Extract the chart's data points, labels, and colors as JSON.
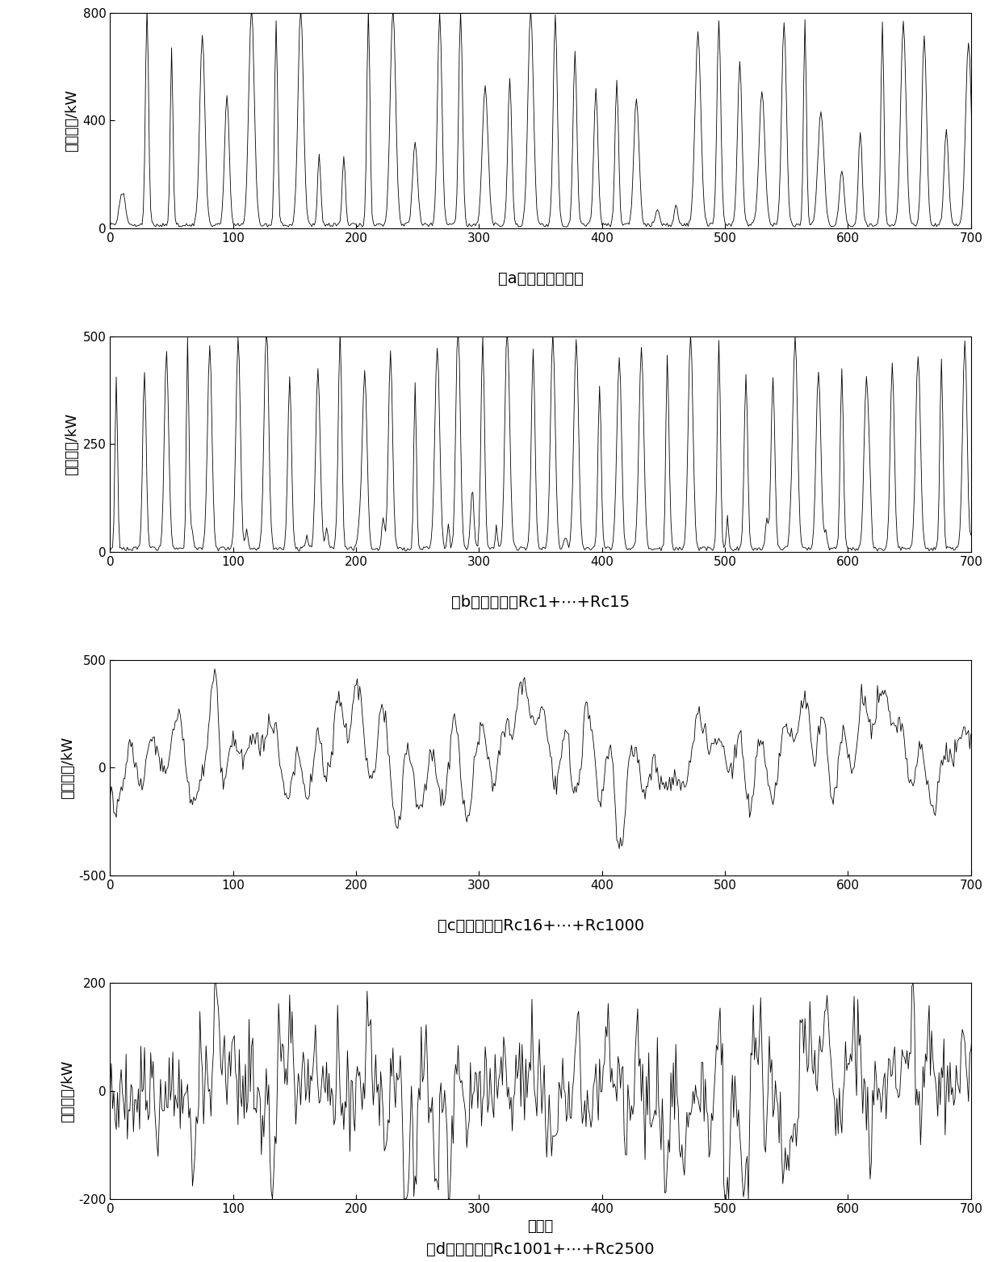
{
  "n_points": 720,
  "subplot_a": {
    "ylabel": "光伏出力/kW",
    "caption": "（a）原始数据序列",
    "ylim": [
      0,
      800
    ],
    "yticks": [
      0,
      400,
      800
    ]
  },
  "subplot_b": {
    "ylabel": "低频序列/kW",
    "caption": "（b）重构序列Rc1+⋯+Rc15",
    "ylim": [
      0,
      500
    ],
    "yticks": [
      0,
      250,
      500
    ]
  },
  "subplot_c": {
    "ylabel": "高频序列/kW",
    "caption": "（c）重构序列Rc16+⋯+Rc1000",
    "ylim": [
      -500,
      500
    ],
    "yticks": [
      -500,
      0,
      500
    ]
  },
  "subplot_d": {
    "ylabel": "噪声序列/kW",
    "caption": "（d）重构序列Rc1001+⋯+Rc2500",
    "ylim": [
      -200,
      200
    ],
    "yticks": [
      -200,
      0,
      200
    ],
    "xlabel": "观测点"
  },
  "xlim": [
    0,
    700
  ],
  "xticks": [
    0,
    100,
    200,
    300,
    400,
    500,
    600,
    700
  ],
  "linewidth": 0.6,
  "linecolor": "#000000",
  "bg_color": "#ffffff",
  "font_size_label": 13,
  "font_size_caption": 14,
  "font_size_tick": 11
}
